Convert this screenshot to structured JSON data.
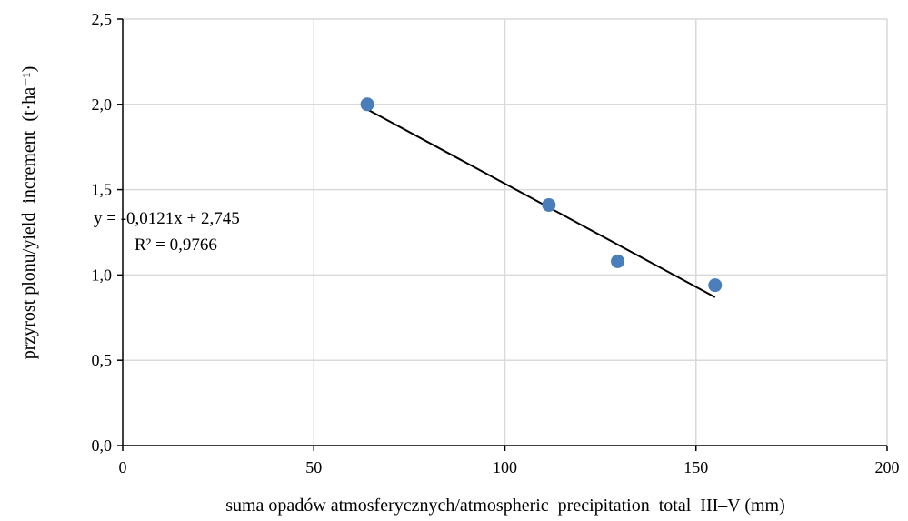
{
  "chart_data": {
    "type": "scatter",
    "xlabel": "suma opadów atmosferycznych/atmospheric  precipitation  total  III–V (mm)",
    "ylabel": "przyrost plonu/yield  increment  (t·ha⁻¹)",
    "xlim": [
      0,
      200
    ],
    "ylim": [
      0,
      2.5
    ],
    "x_ticks": [
      0,
      50,
      100,
      150,
      200
    ],
    "x_tick_labels": [
      "0",
      "50",
      "100",
      "150",
      "200"
    ],
    "y_ticks": [
      0,
      0.5,
      1.0,
      1.5,
      2.0,
      2.5
    ],
    "y_tick_labels": [
      "0,0",
      "0,5",
      "1,0",
      "1,5",
      "2,0",
      "2,5"
    ],
    "grid": true,
    "series": [
      {
        "points": [
          {
            "x": 64,
            "y": 2.0
          },
          {
            "x": 111.5,
            "y": 1.41
          },
          {
            "x": 129.5,
            "y": 1.08
          },
          {
            "x": 155,
            "y": 0.94
          }
        ],
        "color": "#4a7ebb"
      }
    ],
    "trendline": {
      "slope": -0.0121,
      "intercept": 2.745,
      "x_range": [
        64,
        155
      ],
      "equation": "y = -0,0121x  + 2,745",
      "r2": "R² = 0,9766"
    }
  }
}
